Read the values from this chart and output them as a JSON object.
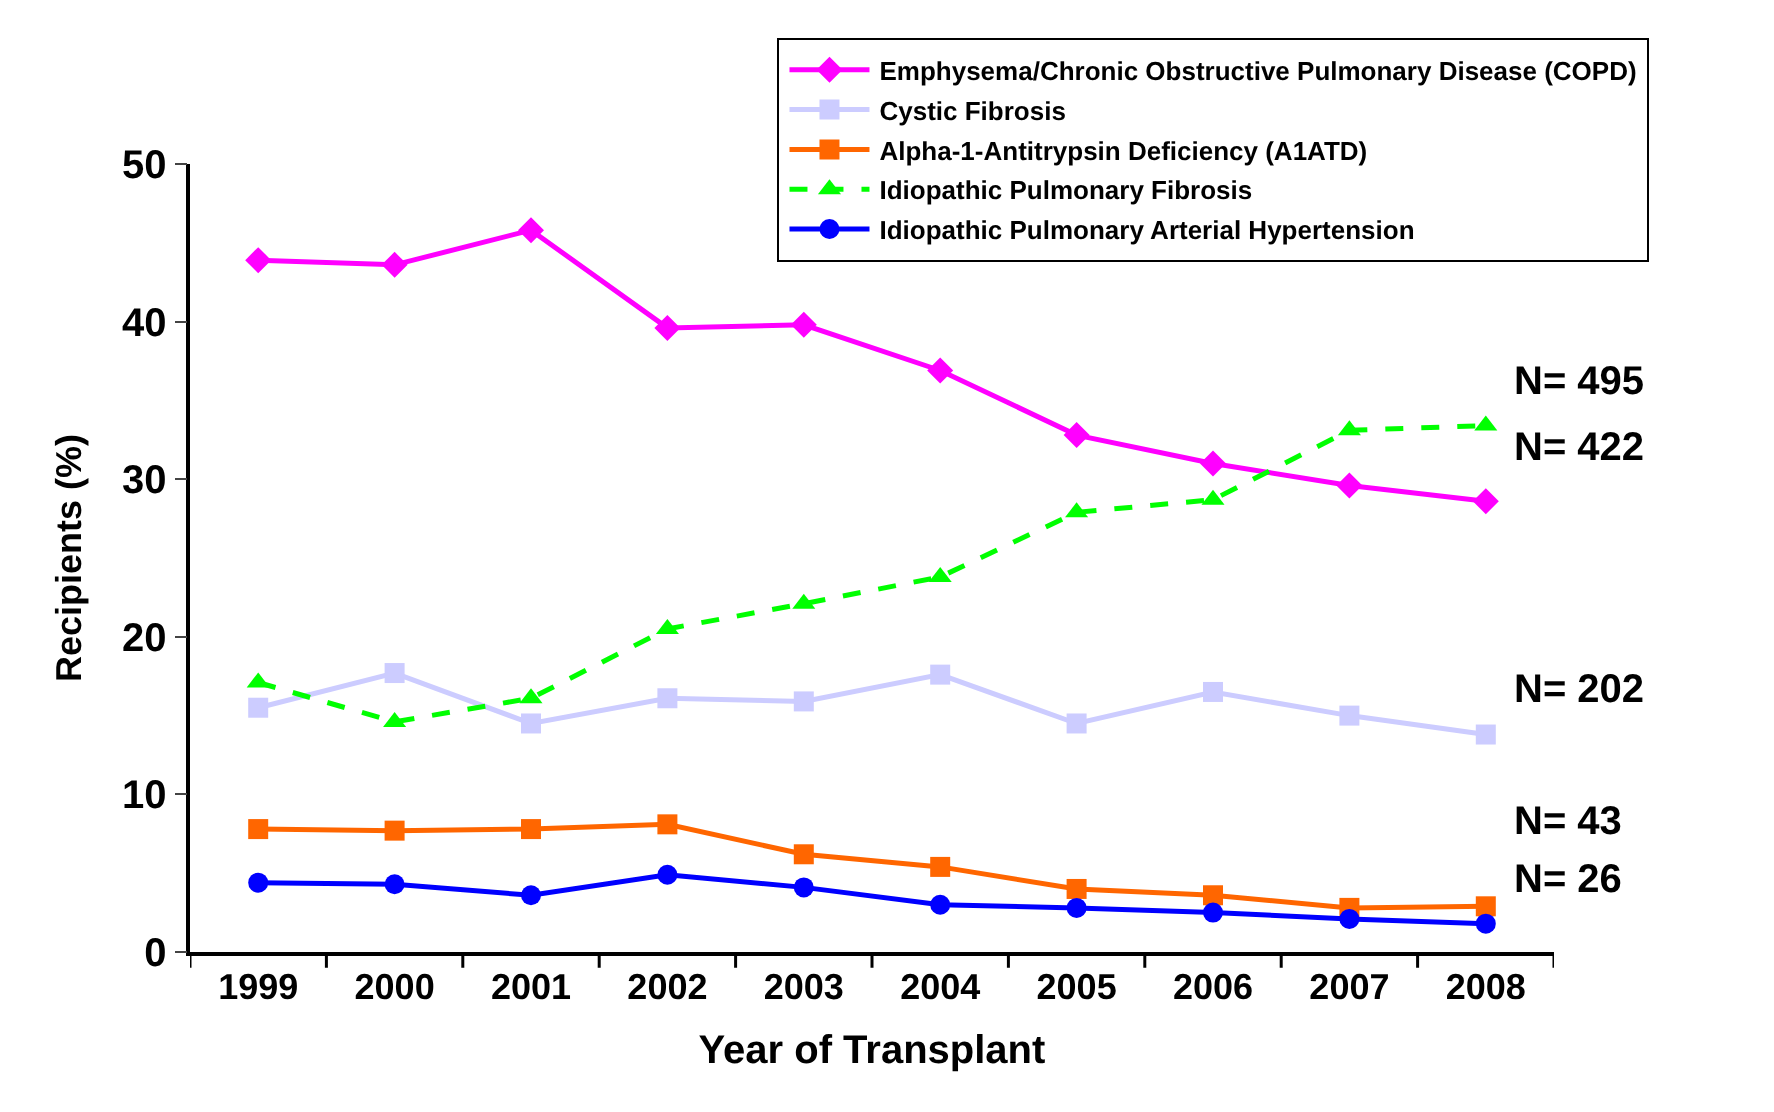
{
  "chart_data": {
    "type": "line",
    "xlabel": "Year of Transplant",
    "ylabel": "Recipients (%)",
    "categories": [
      "1999",
      "2000",
      "2001",
      "2002",
      "2003",
      "2004",
      "2005",
      "2006",
      "2007",
      "2008"
    ],
    "series": [
      {
        "name": "Emphysema/Chronic Obstructive Pulmonary Disease (COPD)",
        "color": "#ff00ff",
        "marker": "diamond",
        "line_style": "solid",
        "values": [
          43.9,
          43.6,
          45.8,
          39.6,
          39.8,
          36.9,
          32.8,
          31.0,
          29.6,
          28.6
        ]
      },
      {
        "name": "Cystic Fibrosis",
        "color": "#ccccff",
        "marker": "square",
        "line_style": "solid",
        "values": [
          15.5,
          17.7,
          14.5,
          16.1,
          15.9,
          17.6,
          14.5,
          16.5,
          15.0,
          13.8
        ]
      },
      {
        "name": "Alpha-1-Antitrypsin Deficiency (A1ATD)",
        "color": "#ff6600",
        "marker": "square",
        "line_style": "solid",
        "values": [
          7.8,
          7.7,
          7.8,
          8.1,
          6.2,
          5.4,
          4.0,
          3.6,
          2.8,
          2.9
        ]
      },
      {
        "name": "Idiopathic Pulmonary Fibrosis",
        "color": "#00ff00",
        "marker": "triangle",
        "line_style": "dashed",
        "values": [
          17.1,
          14.6,
          16.1,
          20.5,
          22.1,
          23.8,
          27.9,
          28.7,
          33.1,
          33.4
        ]
      },
      {
        "name": "Idiopathic Pulmonary Arterial Hypertension",
        "color": "#0000ff",
        "marker": "circle",
        "line_style": "solid",
        "values": [
          4.4,
          4.3,
          3.6,
          4.9,
          4.1,
          3.0,
          2.8,
          2.5,
          2.1,
          1.8
        ]
      }
    ],
    "annotations": [
      {
        "text": "N= 495",
        "x": "2008",
        "y": 33.4
      },
      {
        "text": "N= 422",
        "x": "2008",
        "y": 28.6
      },
      {
        "text": "N= 202",
        "x": "2008",
        "y": 13.8
      },
      {
        "text": "N= 43",
        "x": "2008",
        "y": 2.9
      },
      {
        "text": "N= 26",
        "x": "2008",
        "y": 1.8
      }
    ],
    "ylim": [
      0,
      50
    ],
    "yticks": [
      0,
      10,
      20,
      30,
      40,
      50
    ],
    "legend": "top right"
  }
}
